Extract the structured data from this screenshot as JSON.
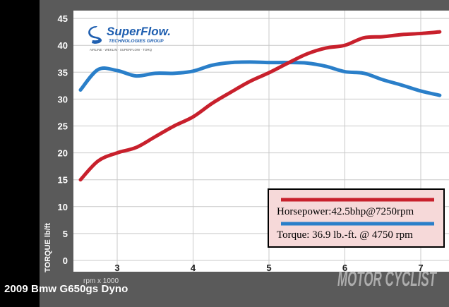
{
  "caption": "2009 Bmw G650gs Dyno",
  "brand": {
    "logo_text": "SuperFlow.",
    "logo_subtext": "TECHNOLOGIES GROUP",
    "tagline": "AIRLINE · WEKLIN · SUPERFLOW · TORQ",
    "logo_color": "#1f5fb0"
  },
  "watermark": "MOTOR CYCLIST",
  "chart_data": {
    "type": "line",
    "ylabel": "TORQUE lb/ft",
    "xlabel": "rpm x 1000",
    "ylim": [
      0,
      45
    ],
    "xlim": [
      2.5,
      7.3
    ],
    "yticks": [
      "0",
      "5",
      "10",
      "15",
      "20",
      "25",
      "30",
      "35",
      "40",
      "45"
    ],
    "xticks": [
      "3",
      "4",
      "5",
      "6",
      "7"
    ],
    "grid": true,
    "legend_position": "bottom-right",
    "series": [
      {
        "name": "Horsepower:42.5bhp@7250rpm",
        "color": "#c8202c",
        "x": [
          2.5,
          2.75,
          3.0,
          3.25,
          3.5,
          3.75,
          4.0,
          4.25,
          4.5,
          4.75,
          5.0,
          5.25,
          5.5,
          5.75,
          6.0,
          6.25,
          6.5,
          6.75,
          7.0,
          7.25
        ],
        "y": [
          15.0,
          18.5,
          20.0,
          21.0,
          23.0,
          25.0,
          26.7,
          29.2,
          31.3,
          33.3,
          34.9,
          36.7,
          38.4,
          39.5,
          40.0,
          41.4,
          41.6,
          42.0,
          42.2,
          42.5
        ]
      },
      {
        "name": "Torque: 36.9 lb.-ft. @ 4750 rpm",
        "color": "#2a7fc9",
        "x": [
          2.5,
          2.75,
          3.0,
          3.25,
          3.5,
          3.75,
          4.0,
          4.25,
          4.5,
          4.75,
          5.0,
          5.25,
          5.5,
          5.75,
          6.0,
          6.25,
          6.5,
          6.75,
          7.0,
          7.25
        ],
        "y": [
          31.7,
          35.5,
          35.3,
          34.3,
          34.8,
          34.8,
          35.2,
          36.3,
          36.8,
          36.9,
          36.8,
          36.8,
          36.7,
          36.1,
          35.1,
          34.8,
          33.6,
          32.6,
          31.5,
          30.7
        ]
      }
    ]
  }
}
